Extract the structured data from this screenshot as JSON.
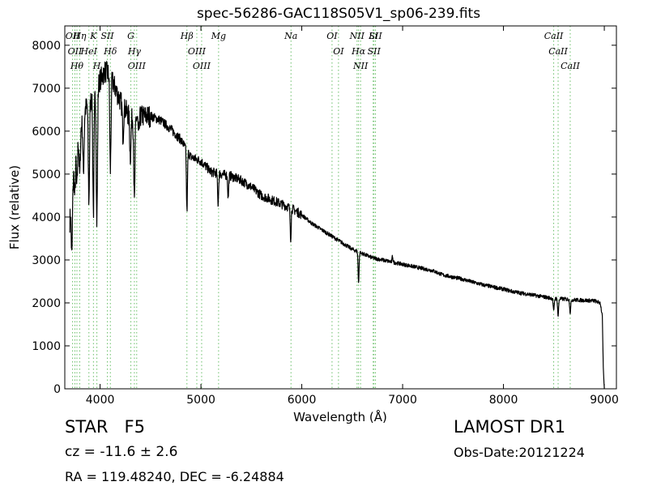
{
  "chart_data": {
    "type": "line",
    "title": "spec-56286-GAC118S05V1_sp06-239.fits",
    "xlabel": "Wavelength (Å)",
    "ylabel": "Flux (relative)",
    "xlim": [
      3650,
      9120
    ],
    "ylim": [
      0,
      8450
    ],
    "x_ticks": [
      4000,
      5000,
      6000,
      7000,
      8000,
      9000
    ],
    "y_ticks": [
      0,
      1000,
      2000,
      3000,
      4000,
      5000,
      6000,
      7000,
      8000
    ],
    "grid": false,
    "line_color": "#000000",
    "marker_color": "#6abf69",
    "continuum": [
      [
        3700,
        3900
      ],
      [
        3720,
        4600
      ],
      [
        3760,
        5700
      ],
      [
        3800,
        6000
      ],
      [
        3850,
        6500
      ],
      [
        3900,
        6700
      ],
      [
        3950,
        6900
      ],
      [
        4000,
        7200
      ],
      [
        4050,
        7400
      ],
      [
        4100,
        7300
      ],
      [
        4150,
        7000
      ],
      [
        4200,
        6700
      ],
      [
        4300,
        6300
      ],
      [
        4400,
        6350
      ],
      [
        4500,
        6350
      ],
      [
        4600,
        6250
      ],
      [
        4700,
        6050
      ],
      [
        4800,
        5800
      ],
      [
        4900,
        5400
      ],
      [
        5000,
        5300
      ],
      [
        5100,
        5050
      ],
      [
        5200,
        5000
      ],
      [
        5300,
        4950
      ],
      [
        5400,
        4850
      ],
      [
        5500,
        4700
      ],
      [
        5600,
        4500
      ],
      [
        5700,
        4400
      ],
      [
        5800,
        4300
      ],
      [
        5900,
        4200
      ],
      [
        6000,
        4050
      ],
      [
        6100,
        3850
      ],
      [
        6200,
        3700
      ],
      [
        6300,
        3550
      ],
      [
        6400,
        3400
      ],
      [
        6500,
        3250
      ],
      [
        6600,
        3150
      ],
      [
        6700,
        3050
      ],
      [
        6800,
        3000
      ],
      [
        6900,
        2950
      ],
      [
        7000,
        2900
      ],
      [
        7100,
        2850
      ],
      [
        7200,
        2800
      ],
      [
        7300,
        2750
      ],
      [
        7400,
        2650
      ],
      [
        7500,
        2600
      ],
      [
        7600,
        2550
      ],
      [
        7700,
        2480
      ],
      [
        7800,
        2420
      ],
      [
        7900,
        2370
      ],
      [
        8000,
        2320
      ],
      [
        8100,
        2260
      ],
      [
        8200,
        2220
      ],
      [
        8300,
        2180
      ],
      [
        8400,
        2140
      ],
      [
        8500,
        2100
      ],
      [
        8600,
        2090
      ],
      [
        8700,
        2070
      ],
      [
        8800,
        2060
      ],
      [
        8900,
        2050
      ],
      [
        8960,
        2000
      ],
      [
        8980,
        1700
      ],
      [
        8990,
        500
      ],
      [
        9000,
        0
      ]
    ],
    "absorption_features": [
      [
        3720,
        1500
      ],
      [
        3750,
        900
      ],
      [
        3770,
        1100
      ],
      [
        3798,
        1000
      ],
      [
        3835,
        1300
      ],
      [
        3889,
        2300
      ],
      [
        3934,
        2700
      ],
      [
        3968,
        3100
      ],
      [
        4102,
        2200
      ],
      [
        4227,
        700
      ],
      [
        4300,
        900
      ],
      [
        4340,
        2000
      ],
      [
        4383,
        500
      ],
      [
        4861,
        1400
      ],
      [
        5170,
        700
      ],
      [
        5270,
        500
      ],
      [
        5890,
        700
      ],
      [
        6563,
        700
      ],
      [
        8498,
        300
      ],
      [
        8542,
        400
      ],
      [
        8662,
        300
      ]
    ],
    "emission_features": [
      [
        6900,
        150
      ]
    ],
    "line_markers": [
      {
        "x": 3727,
        "label": "OII"
      },
      {
        "x": 3750,
        "label": "OII"
      },
      {
        "x": 3770,
        "label": "Hθ"
      },
      {
        "x": 3798,
        "label": "Hη"
      },
      {
        "x": 3889,
        "label": "HeI"
      },
      {
        "x": 3934,
        "label": "K"
      },
      {
        "x": 3968,
        "label": "H"
      },
      {
        "x": 4072,
        "label": "SII"
      },
      {
        "x": 4102,
        "label": "Hδ"
      },
      {
        "x": 4305,
        "label": "G"
      },
      {
        "x": 4340,
        "label": "Hγ"
      },
      {
        "x": 4363,
        "label": "OIII"
      },
      {
        "x": 4861,
        "label": "Hβ"
      },
      {
        "x": 4959,
        "label": "OIII"
      },
      {
        "x": 5007,
        "label": "OIII"
      },
      {
        "x": 5175,
        "label": "Mg"
      },
      {
        "x": 5893,
        "label": "Na"
      },
      {
        "x": 6300,
        "label": "OI"
      },
      {
        "x": 6364,
        "label": "OI"
      },
      {
        "x": 6548,
        "label": "NII"
      },
      {
        "x": 6563,
        "label": "Hα"
      },
      {
        "x": 6583,
        "label": "NII"
      },
      {
        "x": 6708,
        "label": "Li"
      },
      {
        "x": 6716,
        "label": "SII"
      },
      {
        "x": 6731,
        "label": "SII"
      },
      {
        "x": 8498,
        "label": "CaII"
      },
      {
        "x": 8542,
        "label": "CaII"
      },
      {
        "x": 8662,
        "label": "CaII"
      }
    ]
  },
  "info": {
    "classification": "STAR   F5",
    "survey": "LAMOST DR1",
    "redshift": "cz = -11.6 ± 2.6",
    "obs_date": "Obs-Date:20121224",
    "coordinates": "RA = 119.48240, DEC = -6.24884"
  }
}
